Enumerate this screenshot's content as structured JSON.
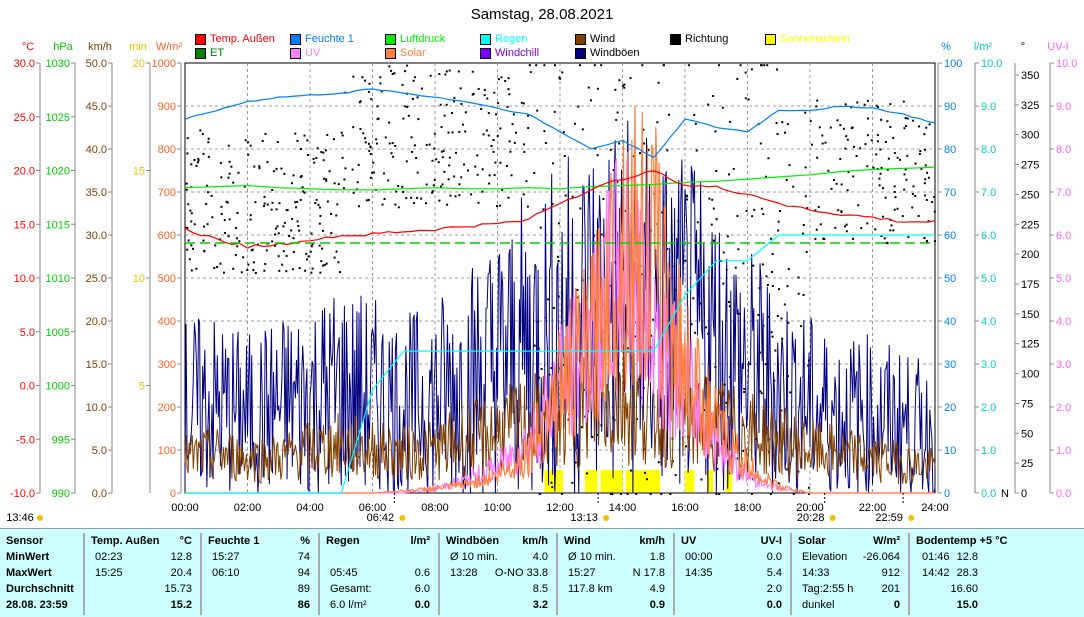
{
  "title": "Samstag, 28.08.2021",
  "legend": [
    {
      "label": "Temp. Außen",
      "color": "#ff0000"
    },
    {
      "label": "Feuchte 1",
      "color": "#0080ff"
    },
    {
      "label": "Luftdruck",
      "color": "#00ee00"
    },
    {
      "label": "Regen",
      "color": "#00ffff"
    },
    {
      "label": "Wind",
      "color": "#804000"
    },
    {
      "label": "Richtung",
      "color": "#000000"
    },
    {
      "label": "Sonnenschein",
      "color": "#ffff00"
    },
    {
      "label": "ET",
      "color": "#008000"
    },
    {
      "label": "UV",
      "color": "#ff80ff"
    },
    {
      "label": "Solar",
      "color": "#ff8040"
    },
    {
      "label": "Windchill",
      "color": "#8000ff"
    },
    {
      "label": "Windböen",
      "color": "#000080"
    }
  ],
  "chart_data": {
    "type": "line",
    "title": "Samstag, 28.08.2021",
    "x_ticks": [
      "00:00",
      "02:00",
      "04:00",
      "06:00",
      "08:00",
      "10:00",
      "12:00",
      "14:00",
      "16:00",
      "18:00",
      "20:00",
      "22:00",
      "24:00"
    ],
    "axes": {
      "left": [
        {
          "unit": "°C",
          "range": [
            -10,
            30
          ],
          "ticks": [
            "30.0",
            "25.0",
            "20.0",
            "15.0",
            "10.0",
            "5.0",
            "0.0",
            "-5.0",
            "-10.0"
          ],
          "color": "#ff0000"
        },
        {
          "unit": "hPa",
          "range": [
            990,
            1030
          ],
          "ticks": [
            "1030",
            "1025",
            "1020",
            "1015",
            "1010",
            "1005",
            "1000",
            "995",
            "990"
          ],
          "color": "#00cc00"
        },
        {
          "unit": "km/h",
          "range": [
            0,
            50
          ],
          "ticks": [
            "50.0",
            "45.0",
            "40.0",
            "35.0",
            "30.0",
            "25.0",
            "20.0",
            "15.0",
            "10.0",
            "5.0",
            "0.0"
          ],
          "color": "#804000"
        },
        {
          "unit": "min",
          "range": [
            0,
            20
          ],
          "ticks": [
            "20",
            "15",
            "10",
            "5"
          ],
          "color": "#e8c000"
        },
        {
          "unit": "W/m²",
          "range": [
            0,
            1000
          ],
          "ticks": [
            "1000",
            "900",
            "800",
            "700",
            "600",
            "500",
            "400",
            "300",
            "200",
            "100",
            "0"
          ],
          "color": "#ff6020"
        }
      ],
      "right": [
        {
          "unit": "%",
          "range": [
            0,
            100
          ],
          "ticks": [
            "100",
            "90",
            "80",
            "70",
            "60",
            "50",
            "40",
            "30",
            "20",
            "10",
            "0"
          ],
          "color": "#0080ff"
        },
        {
          "unit": "l/m²",
          "range": [
            0,
            10
          ],
          "ticks": [
            "10.0",
            "9.0",
            "8.0",
            "7.0",
            "6.0",
            "5.0",
            "4.0",
            "3.0",
            "2.0",
            "1.0",
            "0.0"
          ],
          "color": "#00cccc"
        },
        {
          "unit": "°",
          "range": [
            0,
            360
          ],
          "ticks": [
            "350",
            "325",
            "300",
            "275",
            "250",
            "225",
            "200",
            "175",
            "150",
            "125",
            "100",
            "75",
            "50",
            "25",
            "0"
          ],
          "color": "#000000",
          "extra": "N"
        },
        {
          "unit": "UV-I",
          "range": [
            0,
            10
          ],
          "ticks": [
            "10.0",
            "9.0",
            "8.0",
            "7.0",
            "6.0",
            "5.0",
            "4.0",
            "3.0",
            "2.0",
            "1.0",
            "0.0"
          ],
          "color": "#ff60ff"
        }
      ]
    },
    "hours": [
      0,
      1,
      2,
      3,
      4,
      5,
      6,
      7,
      8,
      9,
      10,
      11,
      12,
      13,
      14,
      15,
      16,
      17,
      18,
      19,
      20,
      21,
      22,
      23,
      24
    ],
    "series": [
      {
        "name": "Temp. Außen",
        "axis": 0,
        "values": [
          14.5,
          13.6,
          12.9,
          13.1,
          13.6,
          13.9,
          14.1,
          14.3,
          14.5,
          14.8,
          15.0,
          15.5,
          17.0,
          18.2,
          19.2,
          20.1,
          18.6,
          18.4,
          17.8,
          17.0,
          16.3,
          15.9,
          15.6,
          15.2,
          15.2
        ]
      },
      {
        "name": "Feuchte 1",
        "axis": 5,
        "values": [
          87,
          89,
          91,
          92,
          92.5,
          93,
          94,
          93,
          92,
          91,
          89.5,
          88,
          84,
          80,
          82,
          78,
          87,
          85,
          84,
          89,
          89,
          90,
          89.5,
          88,
          86
        ]
      },
      {
        "name": "Luftdruck",
        "axis": 1,
        "values": [
          1018.4,
          1018.5,
          1018.6,
          1018.4,
          1018.3,
          1018.2,
          1018.2,
          1018.3,
          1018.4,
          1018.3,
          1018.3,
          1018.4,
          1018.3,
          1018.5,
          1018.6,
          1018.7,
          1018.9,
          1019.0,
          1019.2,
          1019.4,
          1019.6,
          1019.9,
          1020.1,
          1020.2,
          1020.3
        ]
      },
      {
        "name": "Regen",
        "axis": 6,
        "values": [
          0,
          0,
          0,
          0,
          0,
          0,
          2.4,
          3.3,
          3.3,
          3.3,
          3.3,
          3.3,
          3.3,
          3.3,
          3.3,
          3.3,
          4.6,
          5.4,
          5.4,
          6.0,
          6.0,
          6.0,
          6.0,
          6.0,
          6.0
        ]
      },
      {
        "name": "Wind",
        "axis": 2,
        "values": [
          4,
          4.5,
          4,
          4,
          5,
          5.5,
          5,
          4.5,
          5,
          6,
          7,
          8,
          9,
          10,
          11,
          10,
          9,
          8,
          7,
          6,
          5,
          4.5,
          4,
          3.5,
          3
        ]
      },
      {
        "name": "Windböen",
        "axis": 2,
        "values": [
          10,
          10,
          9,
          10,
          11,
          12,
          11,
          10,
          11,
          13,
          15,
          17,
          19,
          21,
          22,
          20,
          19,
          17,
          14,
          12,
          10,
          9,
          9,
          8,
          7
        ]
      },
      {
        "name": "Solar",
        "axis": 4,
        "values": [
          0,
          0,
          0,
          0,
          0,
          0,
          0,
          5,
          10,
          20,
          40,
          90,
          250,
          350,
          600,
          550,
          300,
          150,
          60,
          15,
          0,
          0,
          0,
          0,
          0
        ]
      },
      {
        "name": "UV",
        "axis": 8,
        "values": [
          0,
          0,
          0,
          0,
          0,
          0,
          0,
          0,
          0.1,
          0.3,
          0.6,
          1.2,
          2.5,
          3.5,
          5.4,
          4,
          2.5,
          1.2,
          0.4,
          0.1,
          0,
          0,
          0,
          0,
          0
        ]
      }
    ],
    "sunshine_hours": [
      [
        11.5,
        12.1
      ],
      [
        12.8,
        13.2
      ],
      [
        13.3,
        14.0
      ],
      [
        14.1,
        15.2
      ],
      [
        16.0,
        16.3
      ],
      [
        16.7,
        16.9
      ],
      [
        17.3,
        17.5
      ]
    ],
    "markers": [
      {
        "label": "13:46",
        "hour": -1
      },
      {
        "label": "06:42",
        "hour": 6.7
      },
      {
        "label": "13:13",
        "hour": 13.22
      },
      {
        "label": "20:28",
        "hour": 20.47
      },
      {
        "label": "22:59",
        "hour": 22.98
      }
    ]
  },
  "table": {
    "cols": [
      {
        "h": [
          "Sensor",
          ""
        ],
        "rows": [
          [
            "MinWert",
            ""
          ],
          [
            "MaxWert",
            ""
          ],
          [
            "Durchschnitt",
            ""
          ],
          [
            "28.08. 23:59",
            ""
          ]
        ],
        "boldcol": true
      },
      {
        "h": [
          "Temp. Außen",
          "°C"
        ],
        "rows": [
          [
            "02:23",
            "12.8"
          ],
          [
            "15:25",
            "20.4"
          ],
          [
            "",
            "15.73"
          ],
          [
            "",
            "15.2"
          ]
        ]
      },
      {
        "h": [
          "Feuchte 1",
          "%"
        ],
        "rows": [
          [
            "15:27",
            "74"
          ],
          [
            "06:10",
            "94"
          ],
          [
            "",
            "89"
          ],
          [
            "",
            "86"
          ]
        ]
      },
      {
        "h": [
          "Regen",
          "l/m²"
        ],
        "rows": [
          [
            "",
            ""
          ],
          [
            "05:45",
            "0.6"
          ],
          [
            "Gesamt:",
            "6.0"
          ],
          [
            "6.0 l/m²",
            "0.0"
          ]
        ]
      },
      {
        "h": [
          "Windböen",
          "km/h"
        ],
        "rows": [
          [
            "Ø 10 min.",
            "4.0"
          ],
          [
            "13:28",
            "O-NO 33.8"
          ],
          [
            "",
            "8.5"
          ],
          [
            "",
            "3.2"
          ]
        ]
      },
      {
        "h": [
          "Wind",
          "km/h"
        ],
        "rows": [
          [
            "Ø 10 min.",
            "1.8"
          ],
          [
            "15:27",
            "N 17.8"
          ],
          [
            "117.8 km",
            "4.9"
          ],
          [
            "",
            "0.9"
          ]
        ]
      },
      {
        "h": [
          "UV",
          "UV-I"
        ],
        "rows": [
          [
            "00:00",
            "0.0"
          ],
          [
            "14:35",
            "5.4"
          ],
          [
            "",
            "2.0"
          ],
          [
            "",
            "0.0"
          ]
        ]
      },
      {
        "h": [
          "Solar",
          "W/m²"
        ],
        "rows": [
          [
            "Elevation",
            "-26.064"
          ],
          [
            "14:33",
            "912"
          ],
          [
            "Tag:2:55 h",
            "201"
          ],
          [
            "dunkel",
            "0"
          ]
        ]
      },
      {
        "h": [
          "Bodentemp +5",
          "°C"
        ],
        "rows": [
          [
            "01:46",
            "12.8"
          ],
          [
            "14:42",
            "28.3"
          ],
          [
            "",
            "16.60"
          ],
          [
            "",
            "15.0"
          ]
        ]
      }
    ]
  }
}
